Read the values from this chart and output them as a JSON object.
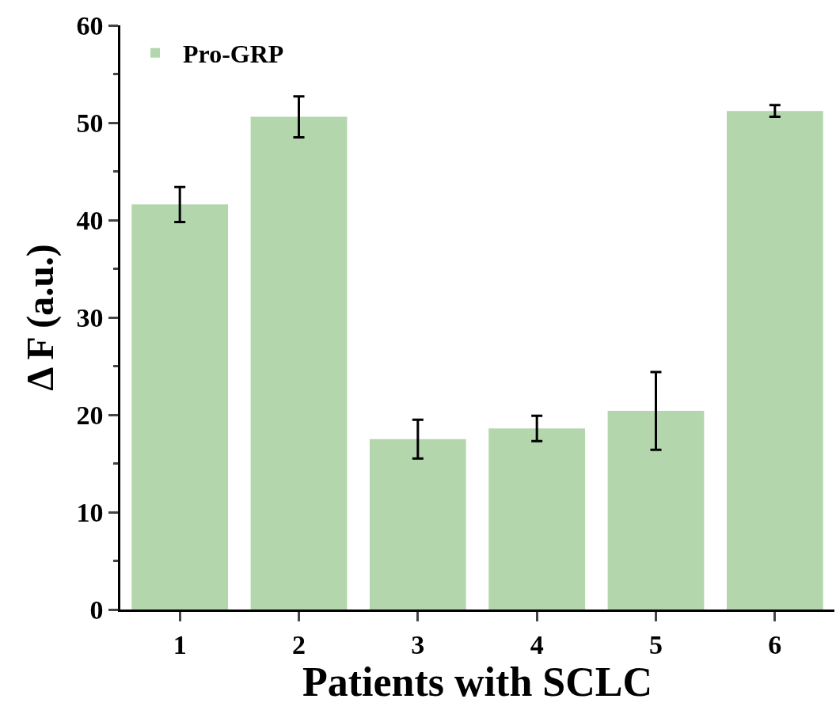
{
  "chart_data": {
    "type": "bar",
    "xlabel": "Patients with SCLC",
    "ylabel": "Δ F (a.u.)",
    "categories": [
      "1",
      "2",
      "3",
      "4",
      "5",
      "6"
    ],
    "series": [
      {
        "name": "Pro-GRP",
        "color": "#b3d6ad",
        "values": [
          41.6,
          50.6,
          17.5,
          18.6,
          20.4,
          51.2
        ],
        "errors": [
          1.8,
          2.1,
          2.0,
          1.3,
          4.0,
          0.6
        ]
      }
    ],
    "ylim": [
      0,
      60
    ],
    "yticks": [
      0,
      10,
      20,
      30,
      40,
      50,
      60
    ],
    "grid": false,
    "legend": "top left"
  }
}
